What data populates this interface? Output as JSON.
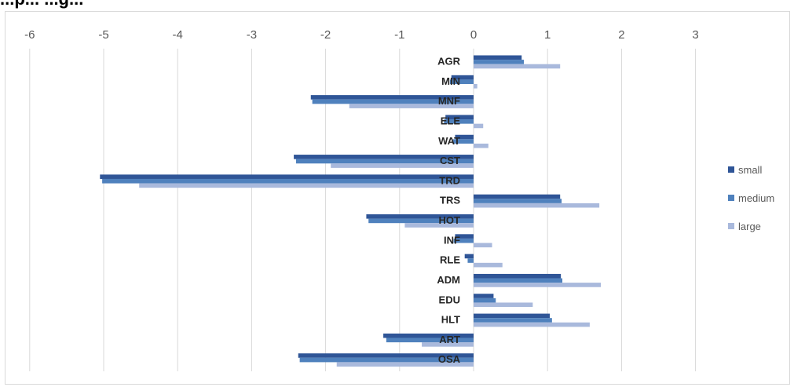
{
  "title_partial": "...p...                                    ...g...",
  "chart_data": {
    "type": "bar",
    "orientation": "horizontal",
    "categories": [
      "AGR",
      "MIN",
      "MNF",
      "ELE",
      "WAT",
      "CST",
      "TRD",
      "TRS",
      "HOT",
      "INF",
      "RLE",
      "ADM",
      "EDU",
      "HLT",
      "ART",
      "OSA"
    ],
    "series": [
      {
        "name": "small",
        "color": "#2f5597",
        "values": [
          0.65,
          -0.3,
          -2.2,
          -0.38,
          -0.25,
          -2.43,
          -5.05,
          1.17,
          -1.45,
          -0.25,
          -0.12,
          1.18,
          0.27,
          1.03,
          -1.22,
          -2.37
        ]
      },
      {
        "name": "medium",
        "color": "#4f81bd",
        "values": [
          0.68,
          -0.32,
          -2.18,
          -0.4,
          -0.28,
          -2.4,
          -5.02,
          1.19,
          -1.42,
          -0.27,
          -0.08,
          1.2,
          0.3,
          1.06,
          -1.18,
          -2.35
        ]
      },
      {
        "name": "large",
        "color": "#a9b9dc",
        "values": [
          1.17,
          0.05,
          -1.68,
          0.13,
          0.2,
          -1.93,
          -4.52,
          1.7,
          -0.93,
          0.25,
          0.39,
          1.72,
          0.8,
          1.57,
          -0.7,
          -1.85
        ]
      }
    ],
    "xticks": [
      -6,
      -5,
      -4,
      -3,
      -2,
      -1,
      0,
      1,
      2,
      3
    ],
    "xlim": [
      -6.3,
      4.3
    ],
    "grid": true,
    "legend_position": "right"
  }
}
